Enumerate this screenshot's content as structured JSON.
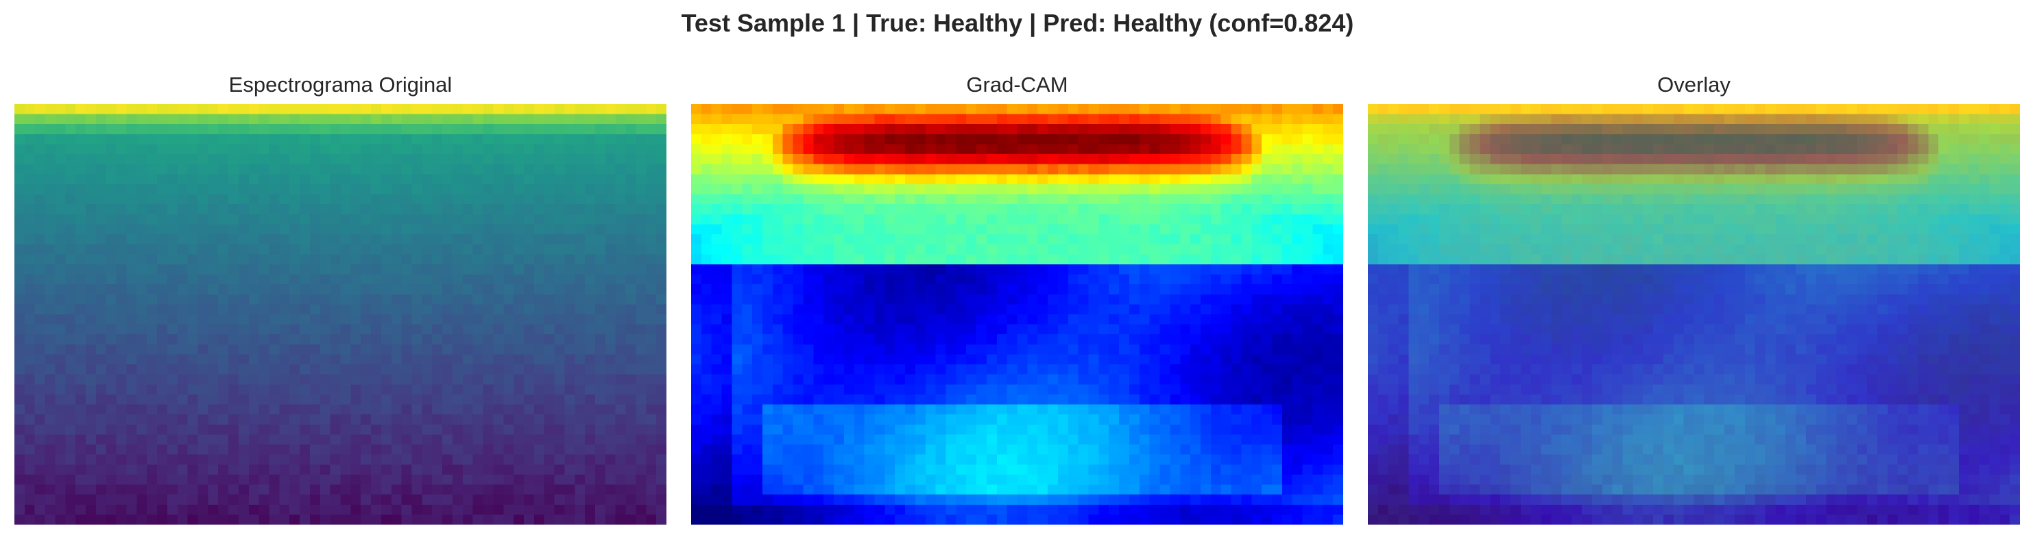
{
  "figure": {
    "title": "Test Sample 1 | True: Healthy | Pred: Healthy (conf=0.824)"
  },
  "panels": [
    {
      "title": "Espectrograma Original",
      "colormap": "viridis"
    },
    {
      "title": "Grad-CAM",
      "colormap": "jet"
    },
    {
      "title": "Overlay",
      "colormap": "jet over viridis"
    }
  ]
}
